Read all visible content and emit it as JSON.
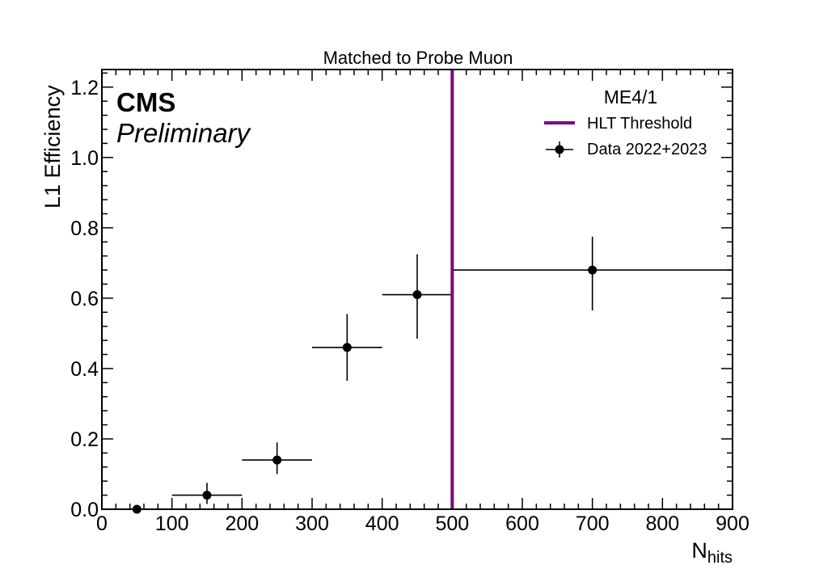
{
  "chart_data": {
    "type": "scatter",
    "title": "Matched to Probe Muon",
    "xlabel": "N",
    "xlabel_sub": "hits",
    "ylabel": "L1 Efficiency",
    "xlim": [
      0,
      900
    ],
    "ylim": [
      0,
      1.25
    ],
    "x_ticks": [
      0,
      100,
      200,
      300,
      400,
      500,
      600,
      700,
      800,
      900
    ],
    "x_tick_labels": [
      "0",
      "100",
      "200",
      "300",
      "400",
      "500",
      "600",
      "700",
      "800",
      "900"
    ],
    "y_ticks": [
      0,
      0.2,
      0.4,
      0.6,
      0.8,
      1.0,
      1.2
    ],
    "y_tick_labels": [
      "0.0",
      "0.2",
      "0.4",
      "0.6",
      "0.8",
      "1.0",
      "1.2"
    ],
    "grid": false,
    "legend_position": "top-right",
    "legend_header": "ME4/1",
    "experiment_label": "CMS",
    "status_label": "Preliminary",
    "threshold": {
      "name": "HLT Threshold",
      "x": 500,
      "color": "#800080"
    },
    "series": [
      {
        "name": "Data 2022+2023",
        "color": "#000000",
        "points": [
          {
            "x": 50,
            "y": 0.0,
            "xlo": 0,
            "xhi": 100,
            "ylo": 0.0,
            "yhi": 0.0
          },
          {
            "x": 150,
            "y": 0.04,
            "xlo": 100,
            "xhi": 200,
            "ylo": 0.015,
            "yhi": 0.075
          },
          {
            "x": 250,
            "y": 0.14,
            "xlo": 200,
            "xhi": 300,
            "ylo": 0.1,
            "yhi": 0.19
          },
          {
            "x": 350,
            "y": 0.46,
            "xlo": 300,
            "xhi": 400,
            "ylo": 0.365,
            "yhi": 0.555
          },
          {
            "x": 450,
            "y": 0.61,
            "xlo": 400,
            "xhi": 500,
            "ylo": 0.485,
            "yhi": 0.725
          },
          {
            "x": 700,
            "y": 0.68,
            "xlo": 500,
            "xhi": 900,
            "ylo": 0.565,
            "yhi": 0.775
          }
        ]
      }
    ]
  }
}
